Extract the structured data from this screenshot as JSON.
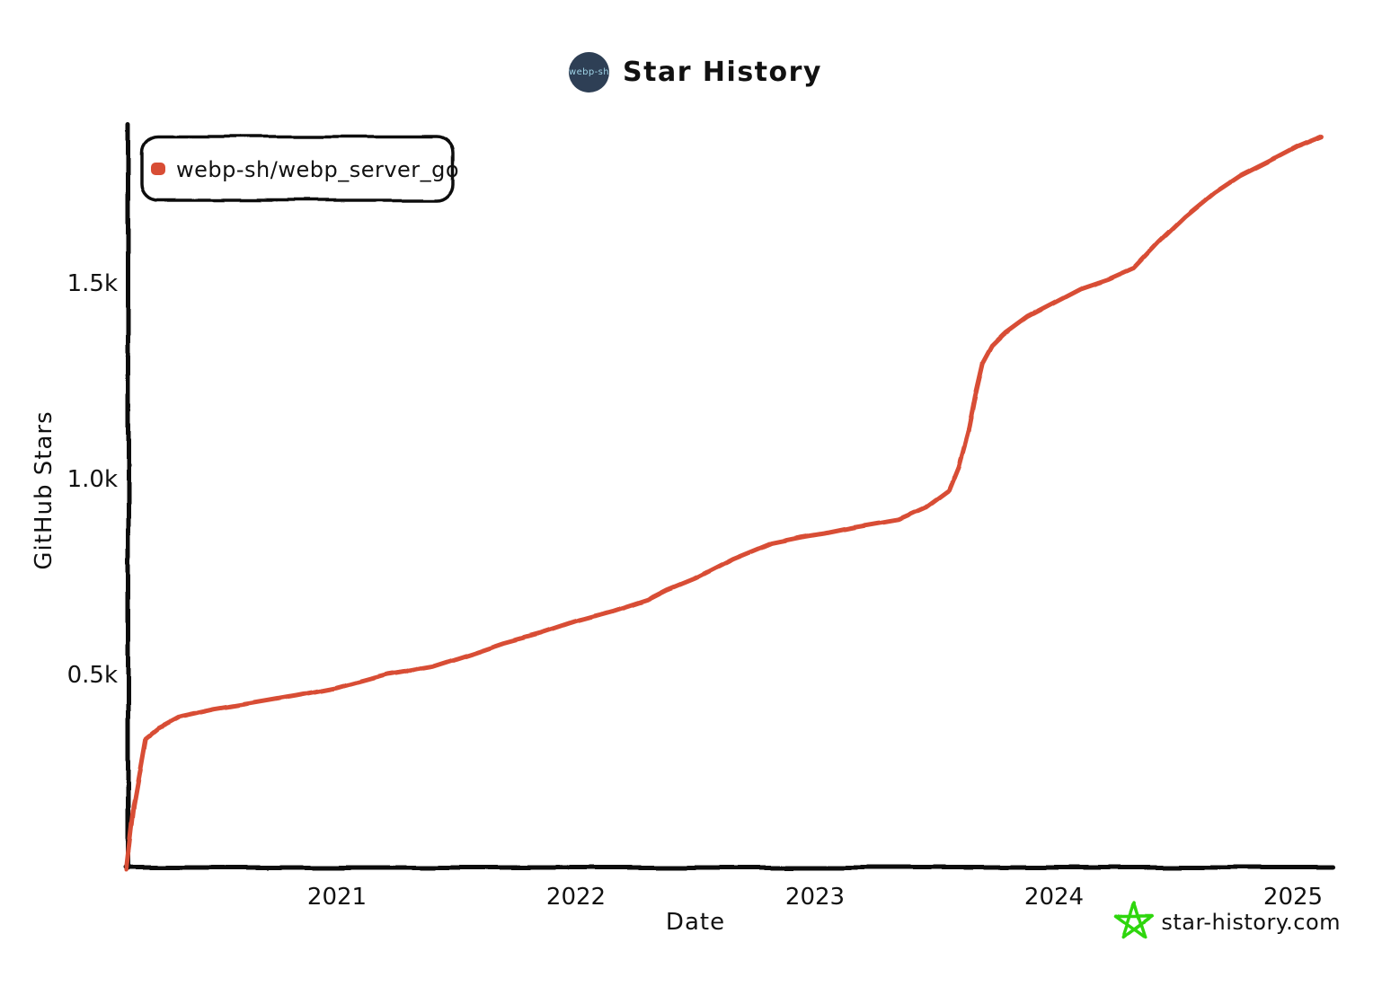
{
  "header": {
    "title": "Star History",
    "logo_text": "webp-sh"
  },
  "chart_data": {
    "type": "line",
    "title": "Star History",
    "xlabel": "Date",
    "ylabel": "GitHub Stars",
    "x_range": [
      2020.1,
      2025.17
    ],
    "y_range": [
      0,
      1900
    ],
    "grid": false,
    "legend_position": "top-left",
    "x_ticks": [
      {
        "label": "2021",
        "value": 2021
      },
      {
        "label": "2022",
        "value": 2022
      },
      {
        "label": "2023",
        "value": 2023
      },
      {
        "label": "2024",
        "value": 2024
      },
      {
        "label": "2025",
        "value": 2025
      }
    ],
    "y_ticks": [
      {
        "label": "0.5k",
        "value": 500
      },
      {
        "label": "1.0k",
        "value": 1000
      },
      {
        "label": "1.5k",
        "value": 1500
      }
    ],
    "series": [
      {
        "name": "webp-sh/webp_server_go",
        "color": "#d84d35",
        "points": [
          [
            2020.12,
            0
          ],
          [
            2020.15,
            160
          ],
          [
            2020.2,
            335
          ],
          [
            2020.25,
            360
          ],
          [
            2020.34,
            390
          ],
          [
            2020.49,
            410
          ],
          [
            2020.64,
            425
          ],
          [
            2020.83,
            445
          ],
          [
            2021.0,
            465
          ],
          [
            2021.21,
            500
          ],
          [
            2021.4,
            520
          ],
          [
            2021.58,
            555
          ],
          [
            2021.7,
            580
          ],
          [
            2021.85,
            605
          ],
          [
            2022.0,
            635
          ],
          [
            2022.15,
            660
          ],
          [
            2022.3,
            690
          ],
          [
            2022.38,
            715
          ],
          [
            2022.5,
            745
          ],
          [
            2022.66,
            795
          ],
          [
            2022.82,
            835
          ],
          [
            2022.94,
            850
          ],
          [
            2023.04,
            860
          ],
          [
            2023.16,
            875
          ],
          [
            2023.35,
            895
          ],
          [
            2023.46,
            925
          ],
          [
            2023.56,
            970
          ],
          [
            2023.6,
            1030
          ],
          [
            2023.64,
            1120
          ],
          [
            2023.67,
            1215
          ],
          [
            2023.7,
            1295
          ],
          [
            2023.74,
            1340
          ],
          [
            2023.79,
            1370
          ],
          [
            2023.89,
            1415
          ],
          [
            2024.0,
            1450
          ],
          [
            2024.11,
            1485
          ],
          [
            2024.23,
            1510
          ],
          [
            2024.34,
            1540
          ],
          [
            2024.44,
            1605
          ],
          [
            2024.55,
            1670
          ],
          [
            2024.67,
            1730
          ],
          [
            2024.78,
            1775
          ],
          [
            2024.91,
            1815
          ],
          [
            2025.02,
            1850
          ],
          [
            2025.12,
            1875
          ]
        ]
      }
    ]
  },
  "watermark": {
    "text": "star-history.com",
    "star_color": "#2ed60e",
    "text_color": "#7a7a7a"
  }
}
